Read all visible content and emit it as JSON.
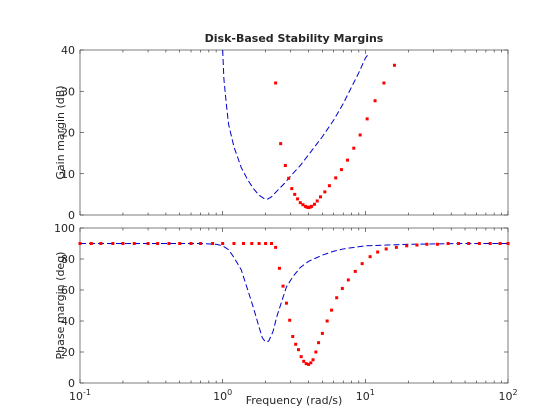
{
  "chart_data": {
    "type": "line",
    "title": "Disk-Based Stability Margins",
    "xlabel": "Frequency (rad/s)",
    "xscale": "log",
    "xlim": [
      0.1,
      100
    ],
    "x_ticks": [
      {
        "value": 0.1,
        "base": "10",
        "exp": "-1"
      },
      {
        "value": 1,
        "base": "10",
        "exp": "0"
      },
      {
        "value": 10,
        "base": "10",
        "exp": "1"
      },
      {
        "value": 100,
        "base": "10",
        "exp": "2"
      }
    ],
    "grid": false,
    "legend": "none",
    "subplots": [
      {
        "name": "gain",
        "ylabel": "Gain margin (dB)",
        "ylim": [
          0,
          40
        ],
        "yticks": [
          0,
          10,
          20,
          30,
          40
        ],
        "series": [
          {
            "style": "dashed",
            "color": "#0000cc",
            "points": [
              [
                1.0,
                40
              ],
              [
                1.02,
                33
              ],
              [
                1.06,
                27
              ],
              [
                1.1,
                22
              ],
              [
                1.2,
                16.5
              ],
              [
                1.35,
                11.5
              ],
              [
                1.5,
                8.5
              ],
              [
                1.65,
                6.3
              ],
              [
                1.8,
                4.8
              ],
              [
                1.95,
                4.0
              ],
              [
                2.05,
                3.8
              ],
              [
                2.2,
                4.4
              ],
              [
                2.4,
                5.8
              ],
              [
                2.7,
                7.6
              ],
              [
                3.0,
                9.5
              ],
              [
                3.5,
                12.0
              ],
              [
                4.0,
                14.6
              ],
              [
                5.0,
                19.0
              ],
              [
                6.0,
                23.0
              ],
              [
                7.0,
                27.0
              ],
              [
                8.0,
                31.0
              ],
              [
                9.0,
                34.5
              ],
              [
                10.0,
                38.0
              ],
              [
                10.5,
                39.0
              ]
            ]
          },
          {
            "style": "dotted",
            "color": "#ff0000",
            "points": [
              [
                2.35,
                32
              ],
              [
                2.55,
                17.3
              ],
              [
                2.75,
                12.0
              ],
              [
                2.9,
                8.9
              ],
              [
                3.05,
                6.4
              ],
              [
                3.2,
                5.0
              ],
              [
                3.35,
                3.9
              ],
              [
                3.5,
                3.0
              ],
              [
                3.65,
                2.5
              ],
              [
                3.8,
                2.1
              ],
              [
                3.9,
                1.9
              ],
              [
                4.0,
                1.8
              ],
              [
                4.1,
                1.9
              ],
              [
                4.2,
                2.1
              ],
              [
                4.4,
                2.6
              ],
              [
                4.6,
                3.4
              ],
              [
                4.85,
                4.4
              ],
              [
                5.2,
                5.6
              ],
              [
                5.6,
                7.1
              ],
              [
                6.2,
                9.0
              ],
              [
                6.8,
                11.0
              ],
              [
                7.5,
                13.3
              ],
              [
                8.3,
                16.2
              ],
              [
                9.2,
                19.4
              ],
              [
                10.3,
                23.3
              ],
              [
                11.7,
                27.7
              ],
              [
                13.5,
                32.0
              ],
              [
                16.0,
                36.3
              ]
            ]
          }
        ]
      },
      {
        "name": "phase",
        "ylabel": "Phase margin (deg)",
        "ylim": [
          0,
          100
        ],
        "yticks": [
          0,
          20,
          40,
          60,
          80,
          100
        ],
        "series": [
          {
            "style": "dashed",
            "color": "#0000cc",
            "points": [
              [
                0.1,
                90
              ],
              [
                0.2,
                90
              ],
              [
                0.4,
                90
              ],
              [
                0.7,
                90
              ],
              [
                0.9,
                89.5
              ],
              [
                1.0,
                88.5
              ],
              [
                1.1,
                86
              ],
              [
                1.2,
                81
              ],
              [
                1.35,
                73
              ],
              [
                1.5,
                60
              ],
              [
                1.65,
                48
              ],
              [
                1.8,
                36
              ],
              [
                1.9,
                29
              ],
              [
                2.0,
                26.5
              ],
              [
                2.1,
                27
              ],
              [
                2.25,
                33
              ],
              [
                2.4,
                43
              ],
              [
                2.6,
                53
              ],
              [
                2.8,
                62
              ],
              [
                3.1,
                68.5
              ],
              [
                3.5,
                74.5
              ],
              [
                4.0,
                78.5
              ],
              [
                5.0,
                82.5
              ],
              [
                6.0,
                85
              ],
              [
                7.0,
                86.5
              ],
              [
                10.0,
                88.5
              ],
              [
                20.0,
                89.5
              ],
              [
                50.0,
                90
              ],
              [
                100.0,
                90
              ]
            ]
          },
          {
            "style": "dotted",
            "color": "#ff0000",
            "points": [
              [
                0.1,
                90
              ],
              [
                0.12,
                90
              ],
              [
                0.14,
                90
              ],
              [
                0.17,
                90
              ],
              [
                0.2,
                90
              ],
              [
                0.24,
                90
              ],
              [
                0.3,
                90
              ],
              [
                0.35,
                90
              ],
              [
                0.42,
                90
              ],
              [
                0.5,
                90
              ],
              [
                0.6,
                90
              ],
              [
                0.7,
                90
              ],
              [
                0.85,
                90
              ],
              [
                1.0,
                90
              ],
              [
                1.2,
                90
              ],
              [
                1.4,
                90
              ],
              [
                1.6,
                90
              ],
              [
                1.8,
                90
              ],
              [
                2.0,
                90
              ],
              [
                2.2,
                90
              ],
              [
                2.35,
                87.5
              ],
              [
                2.5,
                74
              ],
              [
                2.65,
                62.5
              ],
              [
                2.8,
                51.5
              ],
              [
                2.95,
                40.5
              ],
              [
                3.1,
                30
              ],
              [
                3.25,
                25
              ],
              [
                3.4,
                21.5
              ],
              [
                3.55,
                17
              ],
              [
                3.7,
                14
              ],
              [
                3.85,
                12.5
              ],
              [
                4.0,
                12
              ],
              [
                4.15,
                13
              ],
              [
                4.3,
                15
              ],
              [
                4.5,
                20
              ],
              [
                4.7,
                26
              ],
              [
                5.0,
                32
              ],
              [
                5.4,
                40
              ],
              [
                5.8,
                47
              ],
              [
                6.3,
                55
              ],
              [
                6.9,
                61
              ],
              [
                7.6,
                66.5
              ],
              [
                8.5,
                72
              ],
              [
                9.5,
                77
              ],
              [
                10.8,
                81.5
              ],
              [
                12.2,
                84.5
              ],
              [
                14.0,
                86.5
              ],
              [
                16.5,
                87.5
              ],
              [
                19.5,
                88.5
              ],
              [
                23.0,
                89
              ],
              [
                27.0,
                89.5
              ],
              [
                32.0,
                89.5
              ],
              [
                38.0,
                90
              ],
              [
                45.0,
                90
              ],
              [
                53.0,
                90
              ],
              [
                63.0,
                90
              ],
              [
                75.0,
                90
              ],
              [
                88.0,
                90
              ],
              [
                100.0,
                90
              ]
            ]
          }
        ]
      }
    ]
  }
}
